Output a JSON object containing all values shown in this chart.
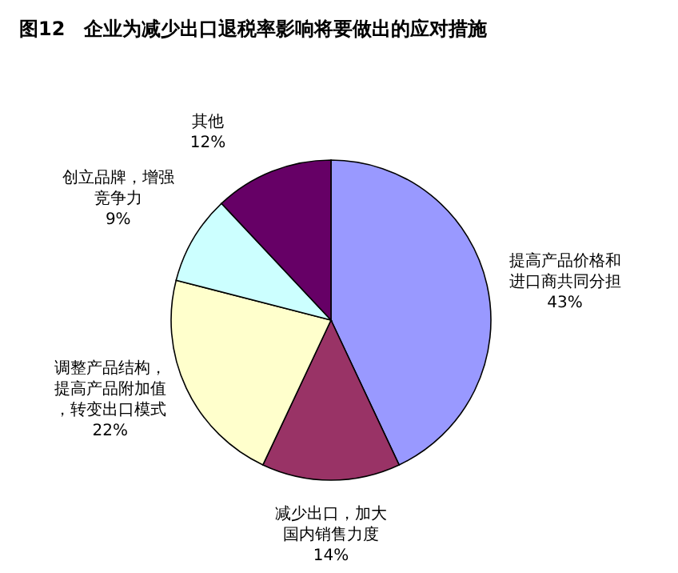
{
  "chart_data": {
    "type": "pie",
    "title": "图12　企业为减少出口退税率影响将要做出的应对措施",
    "categories": [
      "提高产品价格和进口商共同分担",
      "减少出口，加大国内销售力度",
      "调整产品结构，提高产品附加值，转变出口模式",
      "创立品牌，增强竞争力",
      "其他"
    ],
    "values": [
      43,
      14,
      22,
      9,
      12
    ],
    "colors": [
      "#9999ff",
      "#993366",
      "#ffffcc",
      "#ccffff",
      "#660066"
    ],
    "value_labels": [
      "43%",
      "14%",
      "22%",
      "9%",
      "12%"
    ]
  }
}
